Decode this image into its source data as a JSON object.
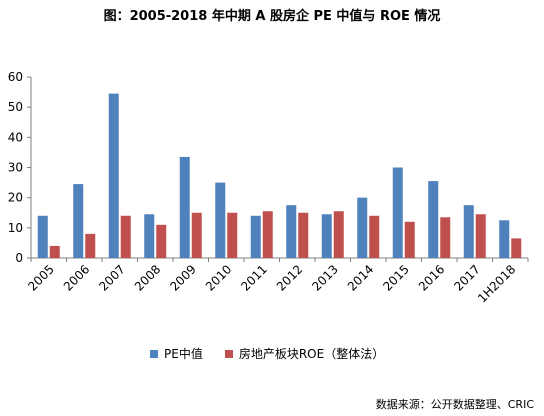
{
  "chart_data": {
    "type": "bar",
    "title": "图：2005-2018 年中期 A 股房企 PE 中值与 ROE 情况",
    "categories": [
      "2005",
      "2006",
      "2007",
      "2008",
      "2009",
      "2010",
      "2011",
      "2012",
      "2013",
      "2014",
      "2015",
      "2016",
      "2017",
      "1H2018"
    ],
    "series": [
      {
        "name": "PE中值",
        "color": "#4f81bd",
        "values": [
          14,
          24.5,
          54.5,
          14.5,
          33.5,
          25,
          14,
          17.5,
          14.5,
          20,
          30,
          25.5,
          17.5,
          12.5
        ]
      },
      {
        "name": "房地产板块ROE（整体法）",
        "color": "#c0504d",
        "values": [
          4,
          8,
          14,
          11,
          15,
          15,
          15.5,
          15,
          15.5,
          14,
          12,
          13.5,
          14.5,
          6.5
        ]
      }
    ],
    "yticks": [
      "0",
      "10",
      "20",
      "30",
      "40",
      "50",
      "60"
    ],
    "ylim": [
      0,
      60
    ],
    "grid": false,
    "legend": "bottom"
  },
  "source": "数据来源：公开数据整理、CRIC"
}
